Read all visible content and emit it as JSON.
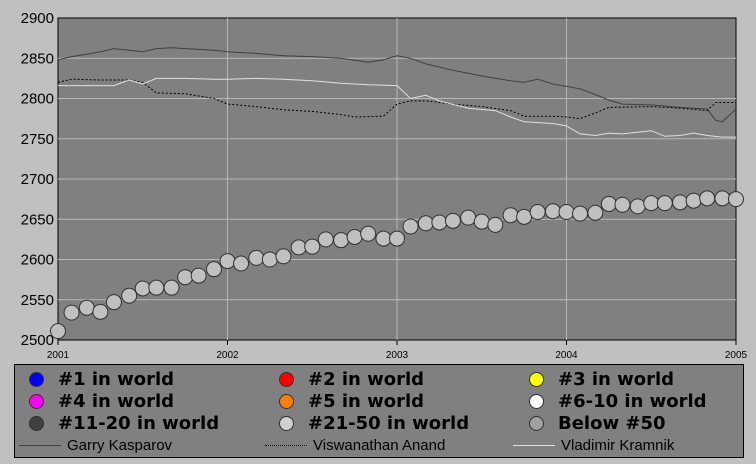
{
  "chart_data": {
    "type": "line",
    "x_range": [
      "2001-01-01",
      "2005-01-01"
    ],
    "ylim": [
      2500,
      2900
    ],
    "yticks": [
      2500,
      2550,
      2600,
      2650,
      2700,
      2750,
      2800,
      2850,
      2900
    ],
    "xtick_labels": [
      "2001",
      "2002",
      "2003",
      "2004",
      "2005"
    ],
    "grid": true,
    "background": "#808080",
    "series": [
      {
        "name": "Garry Kasparov",
        "style": "solid",
        "color": "#404040",
        "points": [
          [
            2001.0,
            2848
          ],
          [
            2001.08,
            2852
          ],
          [
            2001.17,
            2855
          ],
          [
            2001.25,
            2858
          ],
          [
            2001.33,
            2862
          ],
          [
            2001.42,
            2860
          ],
          [
            2001.5,
            2858
          ],
          [
            2001.58,
            2862
          ],
          [
            2001.67,
            2863
          ],
          [
            2001.75,
            2862
          ],
          [
            2001.83,
            2861
          ],
          [
            2001.92,
            2860
          ],
          [
            2002.0,
            2858
          ],
          [
            2002.17,
            2856
          ],
          [
            2002.33,
            2853
          ],
          [
            2002.5,
            2852
          ],
          [
            2002.67,
            2850
          ],
          [
            2002.83,
            2845
          ],
          [
            2002.92,
            2848
          ],
          [
            2003.0,
            2853
          ],
          [
            2003.08,
            2850
          ],
          [
            2003.17,
            2843
          ],
          [
            2003.33,
            2835
          ],
          [
            2003.5,
            2828
          ],
          [
            2003.67,
            2822
          ],
          [
            2003.75,
            2820
          ],
          [
            2003.83,
            2824
          ],
          [
            2003.92,
            2818
          ],
          [
            2004.0,
            2815
          ],
          [
            2004.08,
            2812
          ],
          [
            2004.17,
            2805
          ],
          [
            2004.25,
            2798
          ],
          [
            2004.33,
            2793
          ],
          [
            2004.5,
            2792
          ],
          [
            2004.67,
            2789
          ],
          [
            2004.83,
            2787
          ],
          [
            2004.88,
            2773
          ],
          [
            2004.92,
            2771
          ],
          [
            2005.0,
            2787
          ]
        ]
      },
      {
        "name": "Viswanathan Anand",
        "style": "dotted",
        "color": "#000000",
        "points": [
          [
            2001.0,
            2820
          ],
          [
            2001.08,
            2824
          ],
          [
            2001.25,
            2823
          ],
          [
            2001.42,
            2823
          ],
          [
            2001.5,
            2820
          ],
          [
            2001.58,
            2807
          ],
          [
            2001.75,
            2806
          ],
          [
            2001.92,
            2800
          ],
          [
            2002.0,
            2793
          ],
          [
            2002.17,
            2790
          ],
          [
            2002.33,
            2786
          ],
          [
            2002.5,
            2784
          ],
          [
            2002.67,
            2780
          ],
          [
            2002.75,
            2777
          ],
          [
            2002.92,
            2778
          ],
          [
            2003.0,
            2793
          ],
          [
            2003.08,
            2797
          ],
          [
            2003.17,
            2797
          ],
          [
            2003.33,
            2793
          ],
          [
            2003.5,
            2790
          ],
          [
            2003.67,
            2785
          ],
          [
            2003.75,
            2778
          ],
          [
            2003.92,
            2778
          ],
          [
            2004.0,
            2777
          ],
          [
            2004.08,
            2775
          ],
          [
            2004.17,
            2782
          ],
          [
            2004.25,
            2789
          ],
          [
            2004.5,
            2790
          ],
          [
            2004.67,
            2788
          ],
          [
            2004.83,
            2785
          ],
          [
            2004.88,
            2795
          ],
          [
            2005.0,
            2795
          ]
        ]
      },
      {
        "name": "Vladimir Kramnik",
        "style": "solid",
        "color": "#e0e0e0",
        "points": [
          [
            2001.0,
            2816
          ],
          [
            2001.33,
            2816
          ],
          [
            2001.42,
            2823
          ],
          [
            2001.5,
            2818
          ],
          [
            2001.58,
            2825
          ],
          [
            2001.75,
            2825
          ],
          [
            2001.92,
            2824
          ],
          [
            2002.0,
            2824
          ],
          [
            2002.17,
            2825
          ],
          [
            2002.33,
            2824
          ],
          [
            2002.5,
            2822
          ],
          [
            2002.67,
            2819
          ],
          [
            2002.83,
            2817
          ],
          [
            2003.0,
            2816
          ],
          [
            2003.08,
            2800
          ],
          [
            2003.17,
            2804
          ],
          [
            2003.25,
            2797
          ],
          [
            2003.42,
            2788
          ],
          [
            2003.58,
            2785
          ],
          [
            2003.67,
            2777
          ],
          [
            2003.75,
            2771
          ],
          [
            2003.92,
            2769
          ],
          [
            2004.0,
            2766
          ],
          [
            2004.08,
            2756
          ],
          [
            2004.17,
            2754
          ],
          [
            2004.25,
            2757
          ],
          [
            2004.33,
            2756
          ],
          [
            2004.5,
            2760
          ],
          [
            2004.58,
            2753
          ],
          [
            2004.67,
            2754
          ],
          [
            2004.75,
            2757
          ],
          [
            2004.83,
            2754
          ],
          [
            2004.92,
            2752
          ],
          [
            2005.0,
            2752
          ]
        ]
      },
      {
        "name": "Below #50",
        "style": "markers",
        "color": "#c0c0c0",
        "points": [
          [
            2001.0,
            2511
          ],
          [
            2001.08,
            2534
          ],
          [
            2001.17,
            2540
          ],
          [
            2001.25,
            2535
          ],
          [
            2001.33,
            2547
          ],
          [
            2001.42,
            2555
          ],
          [
            2001.5,
            2564
          ],
          [
            2001.58,
            2565
          ],
          [
            2001.67,
            2565
          ],
          [
            2001.75,
            2578
          ],
          [
            2001.83,
            2580
          ],
          [
            2001.92,
            2588
          ],
          [
            2002.0,
            2598
          ],
          [
            2002.08,
            2595
          ],
          [
            2002.17,
            2602
          ],
          [
            2002.25,
            2600
          ],
          [
            2002.33,
            2604
          ],
          [
            2002.42,
            2615
          ],
          [
            2002.5,
            2616
          ],
          [
            2002.58,
            2625
          ],
          [
            2002.67,
            2624
          ],
          [
            2002.75,
            2628
          ],
          [
            2002.83,
            2632
          ],
          [
            2002.92,
            2626
          ],
          [
            2003.0,
            2626
          ],
          [
            2003.08,
            2641
          ],
          [
            2003.17,
            2645
          ],
          [
            2003.25,
            2646
          ],
          [
            2003.33,
            2648
          ],
          [
            2003.42,
            2652
          ],
          [
            2003.5,
            2647
          ],
          [
            2003.58,
            2643
          ],
          [
            2003.67,
            2655
          ],
          [
            2003.75,
            2653
          ],
          [
            2003.83,
            2659
          ],
          [
            2003.92,
            2660
          ],
          [
            2004.0,
            2659
          ],
          [
            2004.08,
            2657
          ],
          [
            2004.17,
            2658
          ],
          [
            2004.25,
            2669
          ],
          [
            2004.33,
            2668
          ],
          [
            2004.42,
            2666
          ],
          [
            2004.5,
            2670
          ],
          [
            2004.58,
            2670
          ],
          [
            2004.67,
            2671
          ],
          [
            2004.75,
            2673
          ],
          [
            2004.83,
            2676
          ],
          [
            2004.92,
            2676
          ],
          [
            2005.0,
            2675
          ]
        ]
      }
    ]
  },
  "legend": {
    "markers": [
      {
        "label": "#1 in world",
        "color": "#0000ff"
      },
      {
        "label": "#2 in world",
        "color": "#ff0000"
      },
      {
        "label": "#3 in world",
        "color": "#ffff00"
      },
      {
        "label": "#4 in world",
        "color": "#ff00ff"
      },
      {
        "label": "#5 in world",
        "color": "#ff8000"
      },
      {
        "label": "#6-10 in world",
        "color": "#ffffff"
      },
      {
        "label": "#11-20 in world",
        "color": "#404040"
      },
      {
        "label": "#21-50 in world",
        "color": "#d0d0d0"
      },
      {
        "label": "Below #50",
        "color": "#a0a0a0"
      }
    ],
    "lines": [
      {
        "label": "Garry Kasparov",
        "style": "solid",
        "color": "#404040"
      },
      {
        "label": "Viswanathan Anand",
        "style": "dotted",
        "color": "#000000"
      },
      {
        "label": "Vladimir Kramnik",
        "style": "solid",
        "color": "#e0e0e0"
      }
    ]
  }
}
